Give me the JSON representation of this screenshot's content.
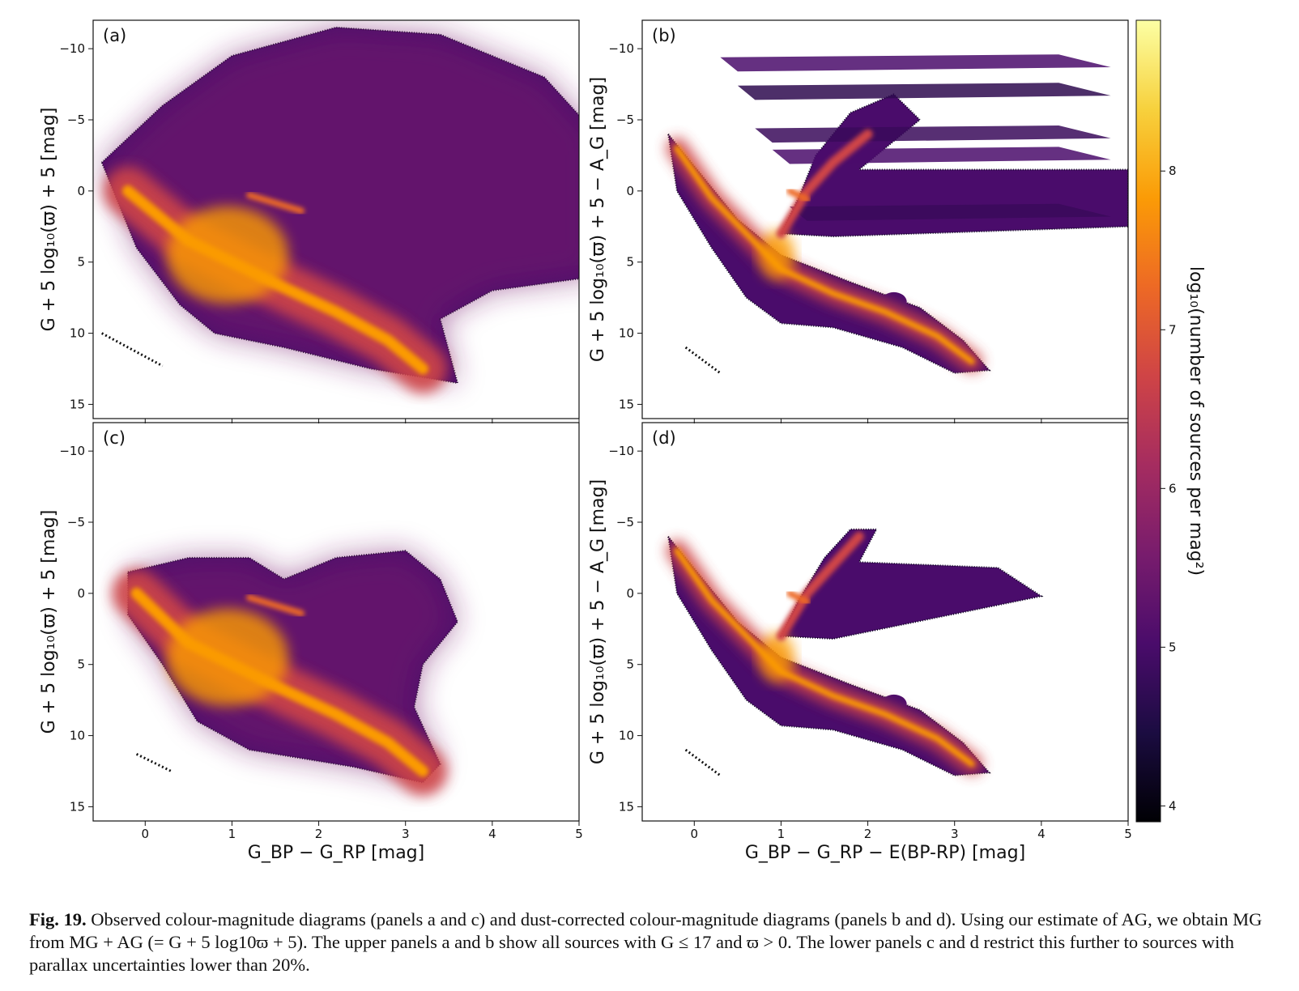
{
  "figure": {
    "caption_label": "Fig. 19.",
    "caption_text": "Observed colour-magnitude diagrams (panels a and c) and dust-corrected colour-magnitude diagrams (panels b and d). Using our estimate of AG, we obtain MG from MG + AG (= G + 5 log10ϖ + 5). The upper panels a and b show all sources with G ≤ 17 and ϖ > 0. The lower panels c and d restrict this further to sources with parallax uncertainties lower than 20%."
  },
  "colors": {
    "colormap": "inferno",
    "cmap_stops": [
      "#000004",
      "#1b0c41",
      "#4a0c6b",
      "#781c6d",
      "#a52c60",
      "#cf4446",
      "#ed6925",
      "#fb9b06",
      "#f7d13d",
      "#fcffa4"
    ]
  },
  "chart_data": [
    {
      "type": "heatmap",
      "panel_label": "(a)",
      "xlabel": "",
      "ylabel": "G + 5 log₁₀(ϖ) + 5 [mag]",
      "xlim": [
        -0.6,
        5
      ],
      "ylim": [
        16,
        -12
      ],
      "x_ticks": [
        "0",
        "1",
        "2",
        "3",
        "4",
        "5"
      ],
      "y_ticks": [
        "−10",
        "−5",
        "0",
        "5",
        "10",
        "15"
      ],
      "x_tick_values": [
        0,
        1,
        2,
        3,
        4,
        5
      ],
      "y_tick_values": [
        -10,
        -5,
        0,
        5,
        10,
        15
      ],
      "features": {
        "main_sequence": [
          [
            -0.2,
            0
          ],
          [
            0.5,
            3.5
          ],
          [
            1.0,
            5
          ],
          [
            1.6,
            6.8
          ],
          [
            2.2,
            8.5
          ],
          [
            2.8,
            10.5
          ],
          [
            3.2,
            12.5
          ]
        ],
        "red_clump": [
          [
            1.2,
            0.3
          ],
          [
            1.8,
            1.4
          ]
        ],
        "white_dwarfs": [
          [
            -0.5,
            10
          ],
          [
            0.2,
            12.3
          ]
        ]
      }
    },
    {
      "type": "heatmap",
      "panel_label": "(b)",
      "xlabel": "",
      "ylabel": "G + 5 log₁₀(ϖ) + 5 − A_G [mag]",
      "xlim": [
        -0.6,
        5
      ],
      "ylim": [
        16,
        -12
      ],
      "x_ticks": [
        "0",
        "1",
        "2",
        "3",
        "4",
        "5"
      ],
      "y_ticks": [
        "−10",
        "−5",
        "0",
        "5",
        "10",
        "15"
      ],
      "x_tick_values": [
        0,
        1,
        2,
        3,
        4,
        5
      ],
      "y_tick_values": [
        -10,
        -5,
        0,
        5,
        10,
        15
      ],
      "features": {
        "main_sequence": [
          [
            -0.2,
            -3
          ],
          [
            0.2,
            0.5
          ],
          [
            0.6,
            3
          ],
          [
            1.0,
            5.5
          ],
          [
            1.6,
            7.2
          ],
          [
            2.2,
            8.5
          ],
          [
            2.8,
            10.2
          ],
          [
            3.2,
            12
          ]
        ],
        "red_clump": [
          [
            1.1,
            0
          ],
          [
            1.3,
            0.6
          ]
        ],
        "giant_branch": [
          [
            1.0,
            3
          ],
          [
            1.3,
            0
          ],
          [
            1.6,
            -2
          ],
          [
            2.0,
            -4
          ]
        ],
        "white_dwarfs": [
          [
            -0.1,
            11
          ],
          [
            0.3,
            12.8
          ]
        ]
      }
    },
    {
      "type": "heatmap",
      "panel_label": "(c)",
      "xlabel": "G_BP − G_RP [mag]",
      "ylabel": "G + 5 log₁₀(ϖ) + 5 [mag]",
      "xlim": [
        -0.6,
        5
      ],
      "ylim": [
        16,
        -12
      ],
      "x_ticks": [
        "0",
        "1",
        "2",
        "3",
        "4",
        "5"
      ],
      "y_ticks": [
        "−10",
        "−5",
        "0",
        "5",
        "10",
        "15"
      ],
      "x_tick_values": [
        0,
        1,
        2,
        3,
        4,
        5
      ],
      "y_tick_values": [
        -10,
        -5,
        0,
        5,
        10,
        15
      ],
      "features": {
        "main_sequence": [
          [
            -0.1,
            0
          ],
          [
            0.5,
            3.5
          ],
          [
            1.0,
            5
          ],
          [
            1.6,
            6.8
          ],
          [
            2.2,
            8.5
          ],
          [
            2.8,
            10.5
          ],
          [
            3.2,
            12.5
          ]
        ],
        "red_clump": [
          [
            1.2,
            0.3
          ],
          [
            1.8,
            1.4
          ]
        ],
        "white_dwarfs": [
          [
            -0.1,
            11.3
          ],
          [
            0.3,
            12.5
          ]
        ]
      }
    },
    {
      "type": "heatmap",
      "panel_label": "(d)",
      "xlabel": "G_BP − G_RP − E(BP-RP) [mag]",
      "ylabel": "G + 5 log₁₀(ϖ) + 5 − A_G [mag]",
      "xlim": [
        -0.6,
        5
      ],
      "ylim": [
        16,
        -12
      ],
      "x_ticks": [
        "0",
        "1",
        "2",
        "3",
        "4",
        "5"
      ],
      "y_ticks": [
        "−10",
        "−5",
        "0",
        "5",
        "10",
        "15"
      ],
      "x_tick_values": [
        0,
        1,
        2,
        3,
        4,
        5
      ],
      "y_tick_values": [
        -10,
        -5,
        0,
        5,
        10,
        15
      ],
      "features": {
        "main_sequence": [
          [
            -0.2,
            -3
          ],
          [
            0.2,
            0.5
          ],
          [
            0.6,
            3
          ],
          [
            1.0,
            5.5
          ],
          [
            1.6,
            7.2
          ],
          [
            2.2,
            8.5
          ],
          [
            2.8,
            10.2
          ],
          [
            3.2,
            12
          ]
        ],
        "red_clump": [
          [
            1.1,
            0
          ],
          [
            1.3,
            0.6
          ]
        ],
        "giant_branch": [
          [
            1.0,
            3
          ],
          [
            1.3,
            0
          ],
          [
            1.6,
            -2
          ],
          [
            1.9,
            -4
          ]
        ],
        "white_dwarfs": [
          [
            -0.1,
            11
          ],
          [
            0.3,
            12.8
          ]
        ]
      }
    }
  ],
  "colorbar": {
    "label": "log₁₀(number of sources per mag²)",
    "ticks": [
      "4",
      "5",
      "6",
      "7",
      "8"
    ],
    "tick_values": [
      4,
      5,
      6,
      7,
      8
    ],
    "range": [
      3.9,
      8.95
    ]
  }
}
